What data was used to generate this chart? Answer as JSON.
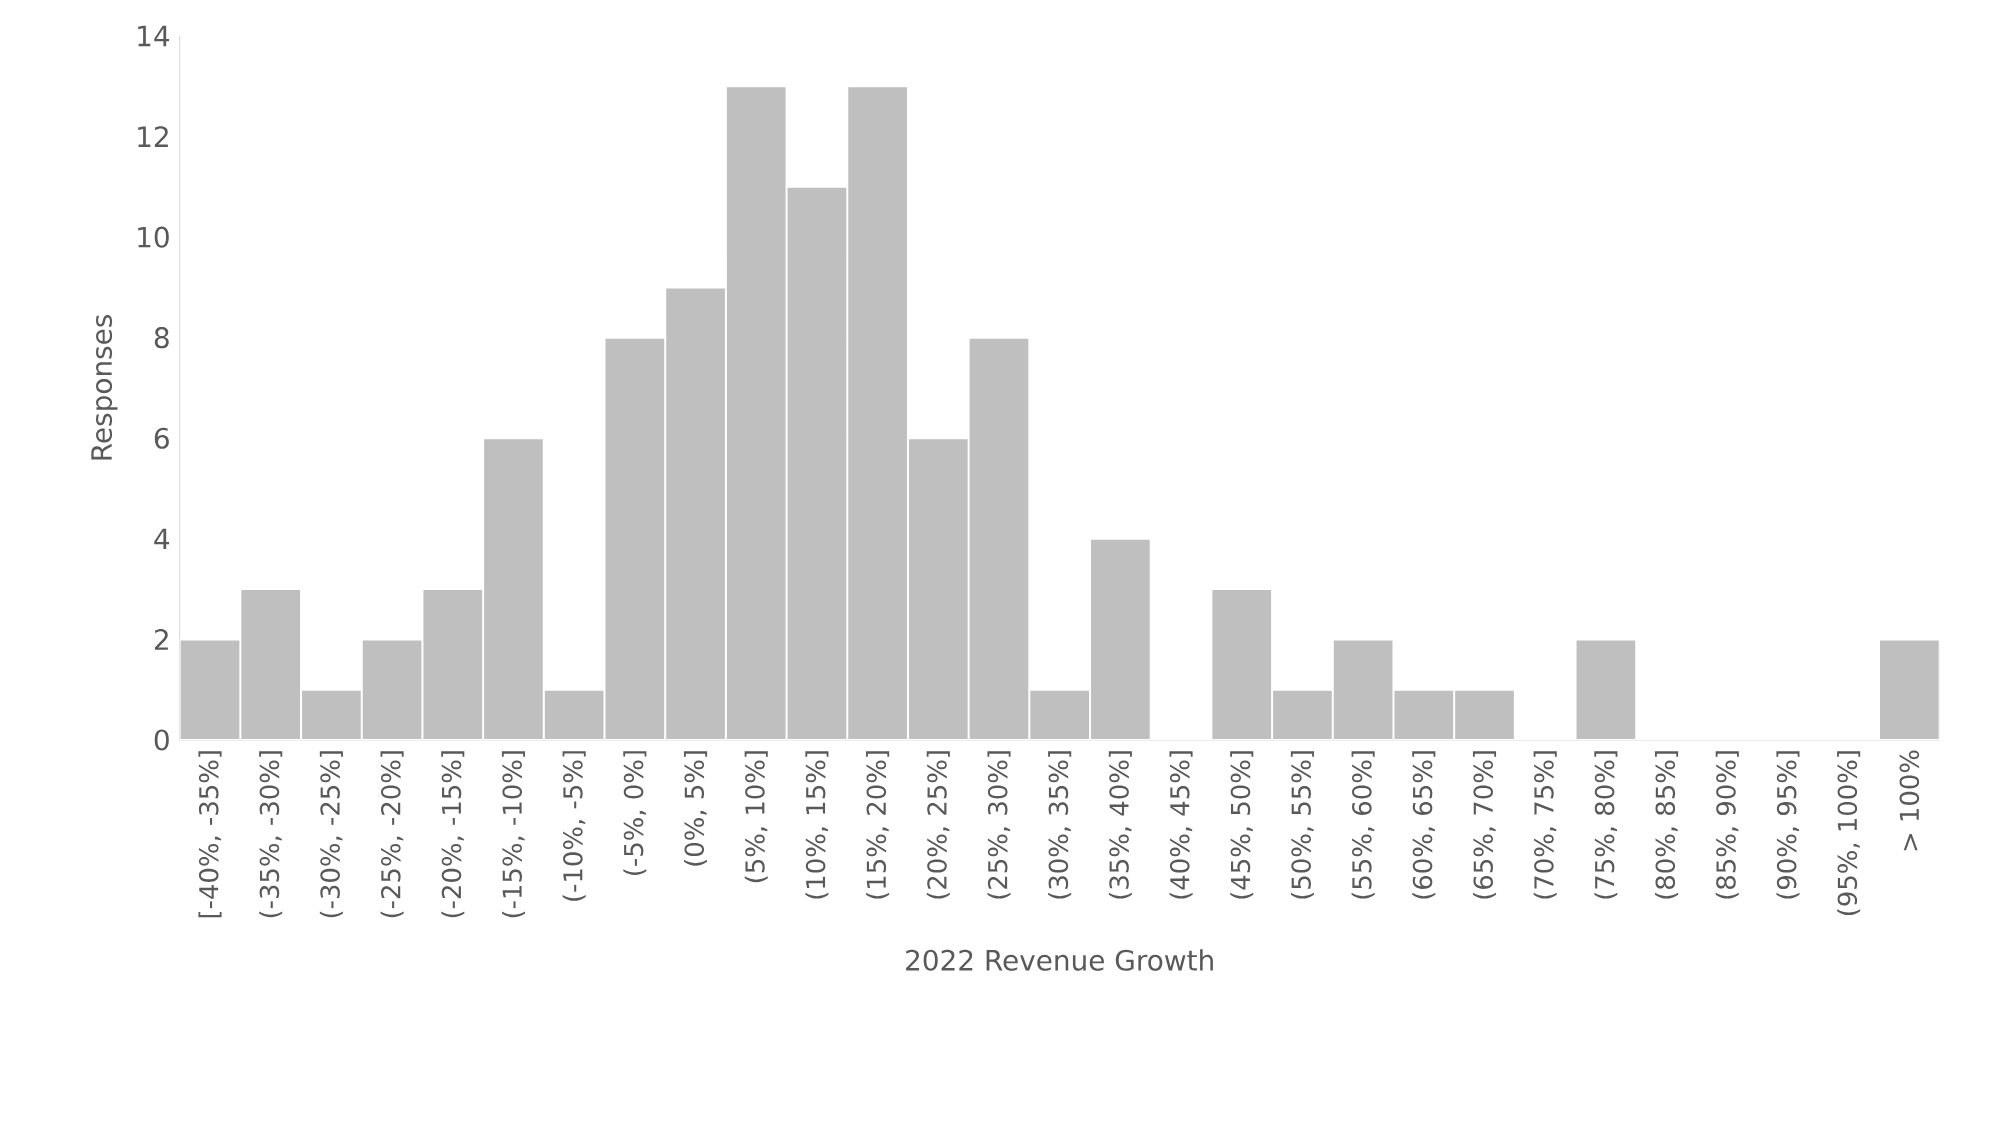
{
  "chart_data": {
    "type": "bar",
    "xlabel": "2022 Revenue Growth",
    "ylabel": "Responses",
    "categories": [
      "[-40%, -35%]",
      "(-35%, -30%]",
      "(-30%, -25%]",
      "(-25%, -20%]",
      "(-20%, -15%]",
      "(-15%, -10%]",
      "(-10%, -5%]",
      "(-5%, 0%]",
      "(0%, 5%]",
      "(5%, 10%]",
      "(10%, 15%]",
      "(15%, 20%]",
      "(20%, 25%]",
      "(25%, 30%]",
      "(30%, 35%]",
      "(35%, 40%]",
      "(40%, 45%]",
      "(45%, 50%]",
      "(50%, 55%]",
      "(55%, 60%]",
      "(60%, 65%]",
      "(65%, 70%]",
      "(70%, 75%]",
      "(75%, 80%]",
      "(80%, 85%]",
      "(85%, 90%]",
      "(90%, 95%]",
      "(95%, 100%]",
      "> 100%"
    ],
    "values": [
      2,
      3,
      1,
      2,
      3,
      6,
      1,
      8,
      9,
      13,
      11,
      13,
      6,
      8,
      1,
      4,
      0,
      3,
      1,
      2,
      1,
      1,
      0,
      2,
      0,
      0,
      0,
      0,
      2
    ],
    "color": "#bfbfbf",
    "ylim": [
      0,
      14
    ],
    "yticks": [
      0,
      2,
      4,
      6,
      8,
      10,
      12,
      14
    ]
  }
}
